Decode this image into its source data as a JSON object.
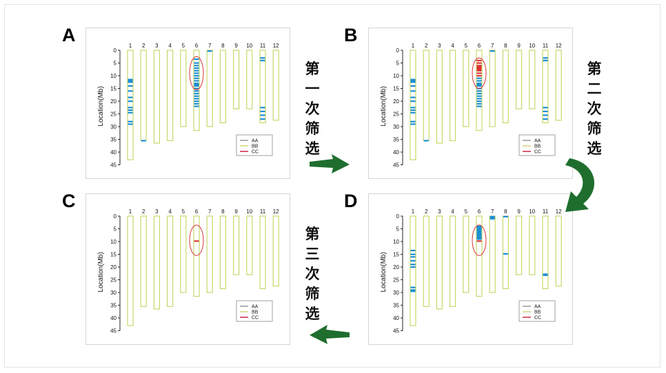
{
  "panels": [
    {
      "label": "A",
      "id": "a"
    },
    {
      "label": "B",
      "id": "b"
    },
    {
      "label": "C",
      "id": "c"
    },
    {
      "label": "D",
      "id": "d"
    }
  ],
  "steps": [
    "第一次筛选",
    "第二次筛选",
    "第三次筛选"
  ],
  "colors": {
    "chromosome": "#c8d86a",
    "AA": "#1a8fd4",
    "BB": "#d4d47a",
    "CC": "#cc2244",
    "highlight": "#dd3333",
    "arrow": "#1f6e2e"
  },
  "chart_data": [
    {
      "type": "diagram",
      "panel": "A",
      "ylabel": "Location(Mb)",
      "ylim": [
        0,
        45
      ],
      "yticks": [
        0,
        5,
        10,
        15,
        20,
        25,
        30,
        35,
        40,
        45
      ],
      "chromosomes": [
        "1",
        "2",
        "3",
        "4",
        "5",
        "6",
        "7",
        "8",
        "9",
        "10",
        "11",
        "12"
      ],
      "lengths": [
        43,
        35.5,
        36.5,
        35.5,
        30,
        31.5,
        30,
        28.5,
        23,
        23,
        28.5,
        27.5
      ],
      "legend": [
        "AA",
        "BB",
        "CC"
      ],
      "highlight_chromosome": "6",
      "markers": [
        {
          "chr": 1,
          "pos": [
            11.5,
            12,
            12.5,
            14,
            16,
            18.5,
            20,
            22.5,
            23.5,
            24.5,
            28,
            29
          ]
        },
        {
          "chr": 2,
          "pos": [
            35.5
          ]
        },
        {
          "chr": 6,
          "pos": [
            3.5,
            5,
            6,
            7,
            8,
            9,
            10,
            11,
            12,
            13,
            13.5,
            14,
            15,
            16,
            17,
            18,
            19,
            20,
            21,
            22
          ]
        },
        {
          "chr": 7,
          "pos": [
            0.3
          ]
        },
        {
          "chr": 11,
          "pos": [
            3,
            4,
            22.5,
            24,
            25.5,
            27
          ]
        }
      ]
    },
    {
      "type": "diagram",
      "panel": "B",
      "ylabel": "Location(Mb)",
      "ylim": [
        0,
        45
      ],
      "yticks": [
        0,
        5,
        10,
        15,
        20,
        25,
        30,
        35,
        40,
        45
      ],
      "chromosomes": [
        "1",
        "2",
        "3",
        "4",
        "5",
        "6",
        "7",
        "8",
        "9",
        "10",
        "11",
        "12"
      ],
      "lengths": [
        43,
        35.5,
        36.5,
        35.5,
        30,
        31.5,
        30,
        28.5,
        23,
        23,
        28.5,
        27.5
      ],
      "legend": [
        "AA",
        "BB",
        "CC"
      ],
      "highlight_chromosome": "6",
      "markers": [
        {
          "chr": 1,
          "pos": [
            11.5,
            12,
            12.5,
            14,
            16,
            18.5,
            20,
            22.5,
            23.5,
            24.5,
            28,
            29
          ]
        },
        {
          "chr": 2,
          "pos": [
            35.5
          ]
        },
        {
          "chr": 6,
          "pos": [
            11,
            12,
            13,
            13.5,
            14,
            15,
            16,
            17,
            18,
            19,
            20,
            21,
            22
          ]
        },
        {
          "chr": 6,
          "class": "CC",
          "pos": [
            4,
            5,
            6,
            6.5,
            7,
            7.5,
            8,
            9,
            10
          ]
        },
        {
          "chr": 7,
          "pos": [
            0.3
          ]
        },
        {
          "chr": 11,
          "pos": [
            3,
            4,
            22.5,
            24,
            25.5,
            27
          ]
        }
      ]
    },
    {
      "type": "diagram",
      "panel": "C",
      "ylabel": "Location(Mb)",
      "ylim": [
        0,
        45
      ],
      "yticks": [
        0,
        5,
        10,
        15,
        20,
        25,
        30,
        35,
        40,
        45
      ],
      "chromosomes": [
        "1",
        "2",
        "3",
        "4",
        "5",
        "6",
        "7",
        "8",
        "9",
        "10",
        "11",
        "12"
      ],
      "lengths": [
        43,
        35.5,
        36.5,
        35.5,
        30,
        31.5,
        30,
        28.5,
        23,
        23,
        28.5,
        27.5
      ],
      "legend": [
        "AA",
        "BB",
        "CC"
      ],
      "highlight_chromosome": "6",
      "markers": [
        {
          "chr": 6,
          "class": "CC",
          "pos": [
            9.8
          ]
        }
      ]
    },
    {
      "type": "diagram",
      "panel": "D",
      "ylabel": "Location(Mb)",
      "ylim": [
        0,
        45
      ],
      "yticks": [
        0,
        5,
        10,
        15,
        20,
        25,
        30,
        35,
        40,
        45
      ],
      "chromosomes": [
        "1",
        "2",
        "3",
        "4",
        "5",
        "6",
        "7",
        "8",
        "9",
        "10",
        "11",
        "12"
      ],
      "lengths": [
        43,
        35.5,
        36.5,
        35.5,
        30,
        31.5,
        30,
        28.5,
        23,
        23,
        28.5,
        27.5
      ],
      "legend": [
        "AA",
        "BB",
        "CC"
      ],
      "highlight_chromosome": "6",
      "markers": [
        {
          "chr": 1,
          "pos": [
            13.5,
            15,
            16,
            17.5,
            19,
            20,
            28,
            29,
            29.5
          ]
        },
        {
          "chr": 6,
          "pos": [
            4,
            4.5,
            5,
            5.5,
            6,
            6.5,
            7,
            7.5,
            8,
            8.5,
            9
          ]
        },
        {
          "chr": 6,
          "class": "CC",
          "pos": [
            9.8
          ]
        },
        {
          "chr": 7,
          "pos": [
            0.2,
            0.6,
            1
          ]
        },
        {
          "chr": 8,
          "pos": [
            0.2,
            14.8
          ]
        },
        {
          "chr": 11,
          "pos": [
            22.8,
            23.2
          ]
        }
      ]
    }
  ]
}
